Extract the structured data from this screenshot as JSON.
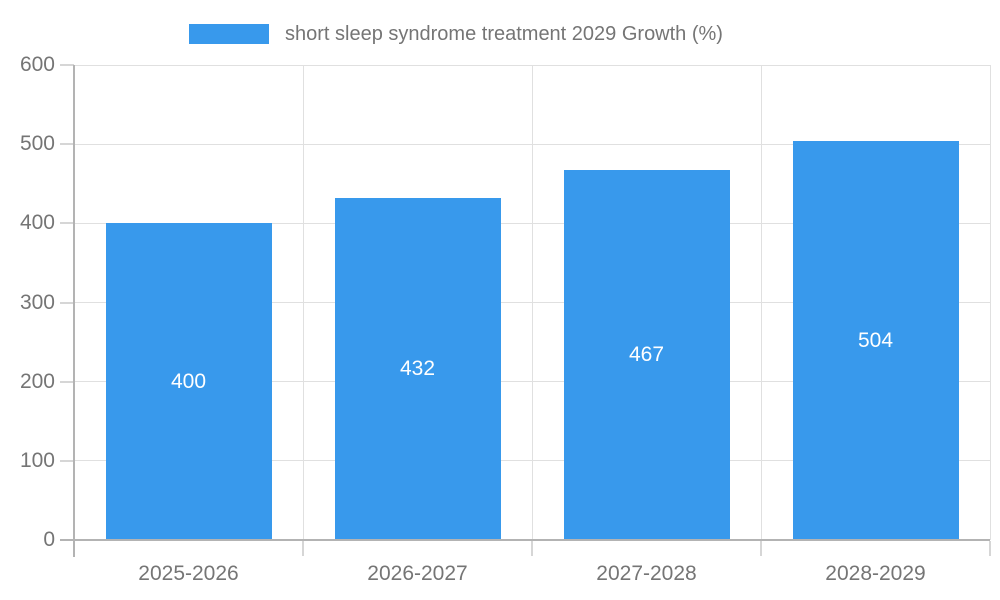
{
  "chart_data": {
    "type": "bar",
    "categories": [
      "2025-2026",
      "2026-2027",
      "2027-2028",
      "2028-2029"
    ],
    "values": [
      400,
      432,
      467,
      504
    ],
    "series_name": "short sleep syndrome treatment 2029 Growth (%)",
    "ylim": [
      0,
      600
    ],
    "yticks": [
      0,
      100,
      200,
      300,
      400,
      500,
      600
    ],
    "grid": true,
    "legend_position": "top",
    "bar_labels": [
      "400",
      "432",
      "467",
      "504"
    ],
    "colors": {
      "bar": "#3899ec",
      "bar_label_text": "#ffffff",
      "axis_text": "#757575",
      "axis_line": "#b3b3b3",
      "gridline": "#e0e0e0",
      "background": "#ffffff"
    }
  },
  "legend": {
    "label": "short sleep syndrome treatment 2029 Growth (%)"
  }
}
